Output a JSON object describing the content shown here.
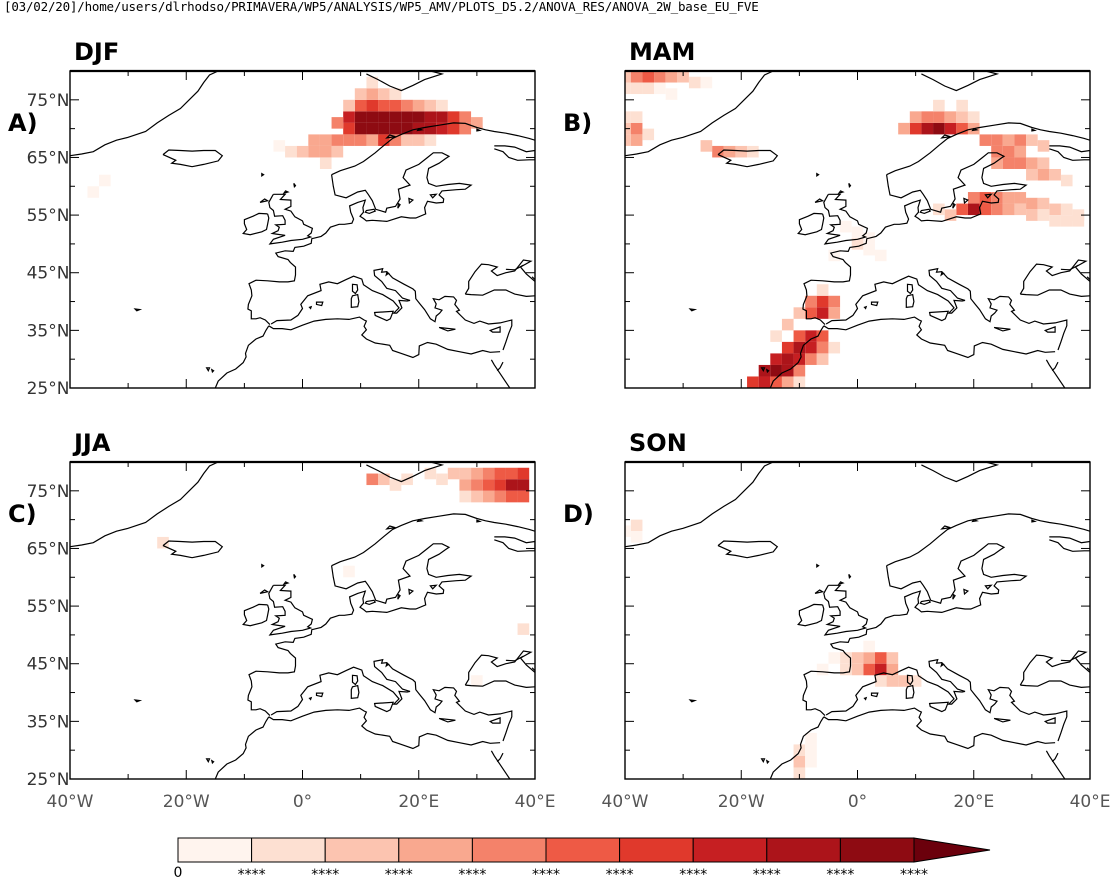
{
  "header": "[03/02/20]/home/users/dlrhodso/PRIMAVERA/WP5/ANALYSIS/WP5_AMV/PLOTS_D5.2/ANOVA_RES/ANOVA_2W_base_EU_FVE",
  "chart_data": {
    "type": "heatmap",
    "map_extent": {
      "lon": [
        -40,
        40
      ],
      "lat": [
        25,
        80
      ]
    },
    "y_tick_labels": [
      "75°N",
      "65°N",
      "55°N",
      "45°N",
      "35°N",
      "25°N"
    ],
    "y_tick_values": [
      75,
      65,
      55,
      45,
      35,
      25
    ],
    "x_tick_labels": [
      "40°W",
      "20°W",
      "0°",
      "20°E",
      "40°E"
    ],
    "x_tick_values": [
      -40,
      -20,
      0,
      20,
      40
    ],
    "colorbar": {
      "min_label": "0",
      "tick_labels": [
        "****",
        "****",
        "****",
        "****",
        "****",
        "****",
        "****",
        "****",
        "****",
        "****"
      ],
      "colors": [
        "#fff4ee",
        "#fde0d2",
        "#fcc4b0",
        "#f9a88f",
        "#f4826a",
        "#ee5a45",
        "#e0392c",
        "#c61f22",
        "#ac141a",
        "#8e0b12"
      ],
      "extend_color": "#6b000c"
    },
    "panels": [
      {
        "title": "DJF",
        "label": "A)",
        "cells": [
          [
            10,
            72,
            10
          ],
          [
            12,
            72,
            10
          ],
          [
            14,
            72,
            10
          ],
          [
            16,
            72,
            10
          ],
          [
            18,
            72,
            10
          ],
          [
            20,
            72,
            10
          ],
          [
            22,
            72,
            9
          ],
          [
            24,
            72,
            9
          ],
          [
            10,
            70,
            10
          ],
          [
            12,
            70,
            10
          ],
          [
            14,
            70,
            10
          ],
          [
            16,
            70,
            10
          ],
          [
            18,
            70,
            10
          ],
          [
            20,
            70,
            9
          ],
          [
            22,
            70,
            9
          ],
          [
            24,
            70,
            8
          ],
          [
            26,
            70,
            7
          ],
          [
            8,
            72,
            8
          ],
          [
            8,
            70,
            7
          ],
          [
            6,
            71,
            5
          ],
          [
            26,
            72,
            7
          ],
          [
            28,
            72,
            5
          ],
          [
            28,
            70,
            5
          ],
          [
            30,
            71,
            4
          ],
          [
            10,
            74,
            6
          ],
          [
            12,
            74,
            7
          ],
          [
            14,
            74,
            6
          ],
          [
            16,
            74,
            6
          ],
          [
            18,
            74,
            5
          ],
          [
            20,
            74,
            4
          ],
          [
            22,
            74,
            3
          ],
          [
            24,
            74,
            2
          ],
          [
            8,
            74,
            3
          ],
          [
            12,
            76,
            4
          ],
          [
            10,
            76,
            3
          ],
          [
            14,
            76,
            3
          ],
          [
            16,
            76,
            2
          ],
          [
            12,
            78,
            2
          ],
          [
            14,
            68,
            7
          ],
          [
            16,
            68,
            5
          ],
          [
            12,
            68,
            4
          ],
          [
            18,
            68,
            3
          ],
          [
            20,
            68,
            3
          ],
          [
            22,
            68,
            2
          ],
          [
            4,
            68,
            4
          ],
          [
            2,
            68,
            4
          ],
          [
            6,
            68,
            5
          ],
          [
            8,
            68,
            5
          ],
          [
            10,
            68,
            5
          ],
          [
            0,
            66,
            3
          ],
          [
            2,
            66,
            4
          ],
          [
            4,
            66,
            4
          ],
          [
            6,
            66,
            3
          ],
          [
            -2,
            66,
            2
          ],
          [
            -4,
            67,
            1
          ],
          [
            4,
            64,
            2
          ],
          [
            -34,
            61,
            1
          ],
          [
            -36,
            59,
            1
          ]
        ]
      },
      {
        "title": "MAM",
        "label": "B)",
        "cells": [
          [
            -40,
            79,
            3
          ],
          [
            -38,
            79,
            5
          ],
          [
            -36,
            79,
            6
          ],
          [
            -34,
            79,
            5
          ],
          [
            -32,
            79,
            4
          ],
          [
            -30,
            79,
            3
          ],
          [
            -28,
            78,
            2
          ],
          [
            -26,
            78,
            1
          ],
          [
            -40,
            77,
            2
          ],
          [
            -38,
            77,
            2
          ],
          [
            -36,
            77,
            2
          ],
          [
            -34,
            77,
            1
          ],
          [
            -32,
            76,
            1
          ],
          [
            -40,
            70,
            3
          ],
          [
            -38,
            70,
            5
          ],
          [
            -38,
            68,
            4
          ],
          [
            -40,
            68,
            3
          ],
          [
            -40,
            72,
            2
          ],
          [
            -38,
            72,
            2
          ],
          [
            -36,
            69,
            2
          ],
          [
            -26,
            67,
            3
          ],
          [
            -24,
            66,
            5
          ],
          [
            -22,
            66,
            4
          ],
          [
            -20,
            66,
            3
          ],
          [
            -18,
            66,
            2
          ],
          [
            12,
            70,
            9
          ],
          [
            14,
            70,
            10
          ],
          [
            16,
            70,
            8
          ],
          [
            10,
            70,
            7
          ],
          [
            18,
            70,
            6
          ],
          [
            8,
            70,
            4
          ],
          [
            20,
            70,
            4
          ],
          [
            10,
            72,
            4
          ],
          [
            12,
            72,
            5
          ],
          [
            14,
            72,
            5
          ],
          [
            16,
            72,
            4
          ],
          [
            18,
            72,
            3
          ],
          [
            20,
            72,
            2
          ],
          [
            14,
            74,
            2
          ],
          [
            18,
            74,
            2
          ],
          [
            22,
            68,
            5
          ],
          [
            24,
            68,
            5
          ],
          [
            26,
            68,
            4
          ],
          [
            28,
            68,
            5
          ],
          [
            30,
            68,
            3
          ],
          [
            32,
            67,
            3
          ],
          [
            24,
            66,
            5
          ],
          [
            26,
            66,
            5
          ],
          [
            28,
            66,
            4
          ],
          [
            24,
            64,
            4
          ],
          [
            26,
            64,
            5
          ],
          [
            28,
            64,
            5
          ],
          [
            30,
            64,
            4
          ],
          [
            32,
            64,
            3
          ],
          [
            30,
            62,
            3
          ],
          [
            32,
            62,
            4
          ],
          [
            34,
            62,
            3
          ],
          [
            36,
            61,
            2
          ],
          [
            20,
            58,
            5
          ],
          [
            22,
            58,
            6
          ],
          [
            24,
            58,
            5
          ],
          [
            26,
            58,
            4
          ],
          [
            28,
            58,
            4
          ],
          [
            30,
            57,
            4
          ],
          [
            32,
            57,
            3
          ],
          [
            34,
            56,
            3
          ],
          [
            36,
            56,
            2
          ],
          [
            38,
            55,
            2
          ],
          [
            20,
            56,
            9
          ],
          [
            18,
            56,
            6
          ],
          [
            22,
            56,
            6
          ],
          [
            24,
            56,
            5
          ],
          [
            26,
            56,
            4
          ],
          [
            28,
            56,
            3
          ],
          [
            30,
            55,
            3
          ],
          [
            32,
            55,
            2
          ],
          [
            34,
            54,
            2
          ],
          [
            36,
            54,
            2
          ],
          [
            38,
            54,
            2
          ],
          [
            16,
            55,
            3
          ],
          [
            14,
            56,
            2
          ],
          [
            -2,
            53,
            1
          ],
          [
            2,
            51,
            1
          ],
          [
            0,
            50,
            2
          ],
          [
            2,
            49,
            1
          ],
          [
            -4,
            48,
            1
          ],
          [
            4,
            48,
            1
          ],
          [
            0,
            52,
            1
          ],
          [
            -8,
            40,
            5
          ],
          [
            -6,
            40,
            7
          ],
          [
            -4,
            40,
            5
          ],
          [
            -8,
            38,
            6
          ],
          [
            -6,
            38,
            8
          ],
          [
            -4,
            38,
            4
          ],
          [
            -10,
            38,
            3
          ],
          [
            -6,
            42,
            2
          ],
          [
            -10,
            34,
            6
          ],
          [
            -8,
            34,
            8
          ],
          [
            -6,
            34,
            6
          ],
          [
            -12,
            32,
            7
          ],
          [
            -10,
            32,
            9
          ],
          [
            -8,
            32,
            8
          ],
          [
            -6,
            32,
            5
          ],
          [
            -14,
            30,
            8
          ],
          [
            -12,
            30,
            9
          ],
          [
            -10,
            30,
            8
          ],
          [
            -8,
            30,
            5
          ],
          [
            -16,
            28,
            9
          ],
          [
            -14,
            28,
            10
          ],
          [
            -12,
            28,
            9
          ],
          [
            -10,
            28,
            5
          ],
          [
            -18,
            26,
            7
          ],
          [
            -16,
            26,
            8
          ],
          [
            -14,
            26,
            6
          ],
          [
            -12,
            26,
            4
          ],
          [
            -10,
            26,
            2
          ],
          [
            -12,
            36,
            3
          ],
          [
            -14,
            34,
            2
          ],
          [
            -6,
            30,
            3
          ],
          [
            -4,
            32,
            2
          ]
        ]
      },
      {
        "title": "JJA",
        "label": "C)",
        "cells": [
          [
            30,
            78,
            4
          ],
          [
            32,
            78,
            5
          ],
          [
            34,
            78,
            6
          ],
          [
            36,
            78,
            6
          ],
          [
            38,
            78,
            7
          ],
          [
            26,
            78,
            3
          ],
          [
            28,
            78,
            3
          ],
          [
            22,
            78,
            2
          ],
          [
            24,
            77,
            2
          ],
          [
            32,
            76,
            6
          ],
          [
            34,
            76,
            7
          ],
          [
            36,
            76,
            9
          ],
          [
            38,
            76,
            9
          ],
          [
            28,
            76,
            4
          ],
          [
            30,
            76,
            5
          ],
          [
            32,
            74,
            4
          ],
          [
            34,
            74,
            5
          ],
          [
            36,
            74,
            6
          ],
          [
            38,
            74,
            6
          ],
          [
            30,
            74,
            3
          ],
          [
            28,
            74,
            2
          ],
          [
            14,
            77,
            3
          ],
          [
            12,
            77,
            5
          ],
          [
            16,
            76,
            2
          ],
          [
            18,
            77,
            2
          ],
          [
            -24,
            66,
            2
          ],
          [
            8,
            61,
            1
          ],
          [
            38,
            51,
            2
          ],
          [
            30,
            42,
            1
          ]
        ]
      },
      {
        "title": "SON",
        "label": "D)",
        "cells": [
          [
            -38,
            69,
            2
          ],
          [
            -40,
            68,
            1
          ],
          [
            -38,
            67,
            1
          ],
          [
            0,
            46,
            3
          ],
          [
            2,
            46,
            4
          ],
          [
            4,
            46,
            6
          ],
          [
            6,
            46,
            3
          ],
          [
            -2,
            46,
            2
          ],
          [
            -4,
            46,
            1
          ],
          [
            2,
            44,
            6
          ],
          [
            4,
            44,
            8
          ],
          [
            6,
            44,
            4
          ],
          [
            0,
            44,
            3
          ],
          [
            -2,
            44,
            2
          ],
          [
            8,
            42,
            3
          ],
          [
            10,
            42,
            2
          ],
          [
            6,
            42,
            3
          ],
          [
            4,
            42,
            2
          ],
          [
            -6,
            44,
            1
          ],
          [
            2,
            48,
            1
          ],
          [
            -8,
            32,
            1
          ],
          [
            -10,
            30,
            2
          ],
          [
            -8,
            30,
            1
          ],
          [
            -10,
            28,
            3
          ],
          [
            -8,
            28,
            1
          ],
          [
            -10,
            26,
            2
          ]
        ]
      }
    ]
  }
}
